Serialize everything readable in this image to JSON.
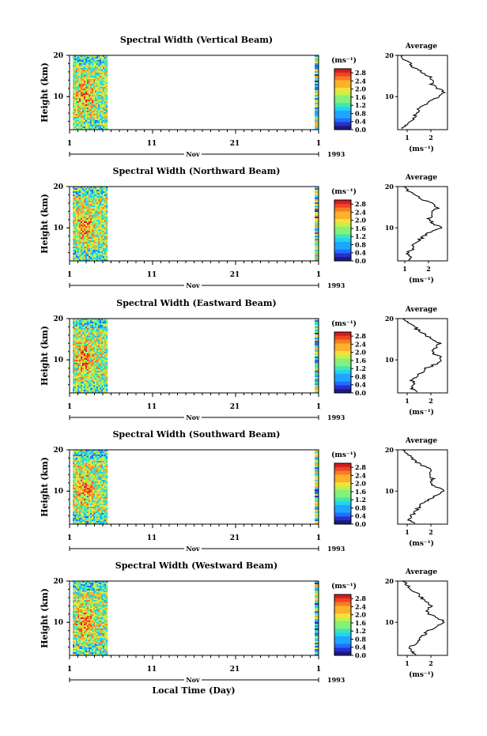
{
  "chart_data": [
    {
      "type": "heatmap",
      "title": "Spectral Width (Vertical Beam)",
      "ylabel": "Height (km)",
      "y_ticks": [
        "20",
        "10"
      ],
      "x_ticks": [
        "1",
        "11",
        "21",
        "1"
      ],
      "month_label": "Nov",
      "year_label": "1993",
      "ylim": [
        2,
        20
      ],
      "colorbar": {
        "unit": "(ms⁻¹)",
        "labels": [
          "2.8",
          "2.4",
          "2.0",
          "1.6",
          "1.2",
          "0.8",
          "0.4",
          "0.0"
        ],
        "range": [
          0.0,
          3.0
        ]
      },
      "profile": {
        "title": "Average",
        "xlabel": "(ms⁻¹)",
        "x_ticks": [
          "1",
          "2"
        ],
        "xlim": [
          0.6,
          2.7
        ],
        "heights": [
          2.2,
          3,
          4,
          5,
          6,
          7,
          8,
          9,
          10,
          11,
          12,
          13,
          14,
          15,
          16,
          17,
          18,
          19,
          20
        ],
        "values": [
          0.75,
          0.9,
          1.2,
          1.3,
          1.4,
          1.5,
          1.7,
          2.0,
          2.3,
          2.6,
          2.3,
          2.0,
          2.1,
          1.9,
          1.6,
          1.3,
          1.1,
          0.9,
          0.8
        ]
      }
    },
    {
      "type": "heatmap",
      "title": "Spectral Width (Northward Beam)",
      "ylabel": "Height (km)",
      "y_ticks": [
        "20",
        "10"
      ],
      "x_ticks": [
        "1",
        "11",
        "21",
        "1"
      ],
      "month_label": "Nov",
      "year_label": "1993",
      "ylim": [
        2,
        20
      ],
      "colorbar": {
        "unit": "(ms⁻¹)",
        "labels": [
          "2.8",
          "2.4",
          "2.0",
          "1.6",
          "1.2",
          "0.8",
          "0.4",
          "0.0"
        ],
        "range": [
          0.0,
          3.0
        ]
      },
      "profile": {
        "title": "Average",
        "xlabel": "(ms⁻¹)",
        "x_ticks": [
          "1",
          "2"
        ],
        "xlim": [
          0.7,
          2.8
        ],
        "heights": [
          2.2,
          3,
          4,
          5,
          6,
          7,
          8,
          9,
          10,
          11,
          12,
          13,
          14,
          15,
          16,
          17,
          18,
          19,
          20
        ],
        "values": [
          1.2,
          1.3,
          1.1,
          1.4,
          1.3,
          1.6,
          1.8,
          2.1,
          2.6,
          2.2,
          2.0,
          2.1,
          2.2,
          2.4,
          2.1,
          1.7,
          1.4,
          1.1,
          0.95
        ]
      }
    },
    {
      "type": "heatmap",
      "title": "Spectral Width (Eastward Beam)",
      "ylabel": "Height (km)",
      "y_ticks": [
        "20",
        "10"
      ],
      "x_ticks": [
        "1",
        "11",
        "21",
        "1"
      ],
      "month_label": "Nov",
      "year_label": "1993",
      "ylim": [
        2,
        20
      ],
      "colorbar": {
        "unit": "(ms⁻¹)",
        "labels": [
          "2.8",
          "2.4",
          "2.0",
          "1.6",
          "1.2",
          "0.8",
          "0.4",
          "0.0"
        ],
        "range": [
          0.0,
          3.0
        ]
      },
      "profile": {
        "title": "Average",
        "xlabel": "(ms⁻¹)",
        "x_ticks": [
          "1",
          "2"
        ],
        "xlim": [
          0.6,
          2.7
        ],
        "heights": [
          2.2,
          3,
          4,
          5,
          6,
          7,
          8,
          9,
          10,
          11,
          12,
          13,
          14,
          15,
          16,
          17,
          18,
          19,
          20
        ],
        "values": [
          1.4,
          1.2,
          1.3,
          1.2,
          1.4,
          1.6,
          1.8,
          2.2,
          2.5,
          2.3,
          2.0,
          2.2,
          2.4,
          2.1,
          1.8,
          1.5,
          1.3,
          1.0,
          0.8
        ]
      }
    },
    {
      "type": "heatmap",
      "title": "Spectral Width (Southward Beam)",
      "ylabel": "Height (km)",
      "y_ticks": [
        "20",
        "10"
      ],
      "x_ticks": [
        "1",
        "11",
        "21",
        "1"
      ],
      "month_label": "Nov",
      "year_label": "1993",
      "ylim": [
        2,
        20
      ],
      "colorbar": {
        "unit": "(ms⁻¹)",
        "labels": [
          "2.8",
          "2.4",
          "2.0",
          "1.6",
          "1.2",
          "0.8",
          "0.4",
          "0.0"
        ],
        "range": [
          0.0,
          3.0
        ]
      },
      "profile": {
        "title": "Average",
        "xlabel": "(ms⁻¹)",
        "x_ticks": [
          "1",
          "2"
        ],
        "xlim": [
          0.6,
          2.7
        ],
        "heights": [
          2.2,
          3,
          4,
          5,
          6,
          7,
          8,
          9,
          10,
          11,
          12,
          13,
          14,
          15,
          16,
          17,
          18,
          19,
          20
        ],
        "values": [
          1.3,
          1.1,
          1.2,
          1.3,
          1.5,
          1.6,
          1.9,
          2.2,
          2.6,
          2.2,
          2.0,
          2.1,
          1.9,
          2.1,
          1.7,
          1.4,
          1.2,
          1.0,
          0.8
        ]
      }
    },
    {
      "type": "heatmap",
      "title": "Spectral Width (Westward Beam)",
      "ylabel": "Height (km)",
      "y_ticks": [
        "20",
        "10"
      ],
      "x_ticks": [
        "1",
        "11",
        "21",
        "1"
      ],
      "month_label": "Nov",
      "year_label": "1993",
      "xlabel": "Local Time (Day)",
      "ylim": [
        2,
        20
      ],
      "colorbar": {
        "unit": "(ms⁻¹)",
        "labels": [
          "2.8",
          "2.4",
          "2.0",
          "1.6",
          "1.2",
          "0.8",
          "0.4",
          "0.0"
        ],
        "range": [
          0.0,
          3.0
        ]
      },
      "profile": {
        "title": "Average",
        "xlabel": "(ms⁻¹)",
        "x_ticks": [
          "1",
          "2"
        ],
        "xlim": [
          0.6,
          2.7
        ],
        "heights": [
          2.2,
          3,
          4,
          5,
          6,
          7,
          8,
          9,
          10,
          11,
          12,
          13,
          14,
          15,
          16,
          17,
          18,
          19,
          20
        ],
        "values": [
          1.3,
          1.2,
          1.1,
          1.4,
          1.5,
          1.7,
          1.9,
          2.2,
          2.6,
          2.3,
          1.9,
          1.8,
          2.0,
          1.8,
          1.6,
          1.4,
          1.2,
          1.0,
          0.8
        ]
      }
    }
  ]
}
